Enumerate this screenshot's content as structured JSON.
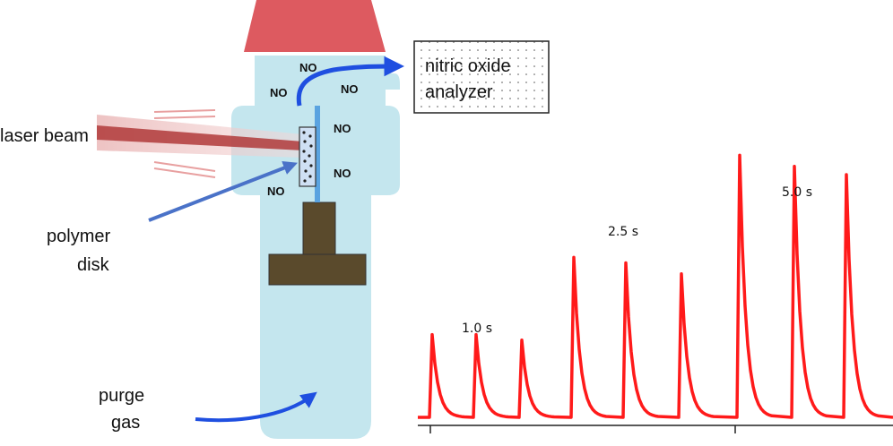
{
  "labels": {
    "analyzer_line1": "nitric oxide",
    "analyzer_line2": "analyzer",
    "laser": "laser beam",
    "polymer_line1": "polymer",
    "polymer_line2": "disk",
    "purge_line1": "purge",
    "purge_line2": "gas"
  },
  "no_label": "NO",
  "no_positions_count": 6,
  "colors": {
    "chamber": "#c4e6ee",
    "cap": "#dd5a60",
    "stand": "#5a4a2c",
    "flow_arrow": "#1f4fe0",
    "pointer_arrow": "#4a72c8",
    "laser": "#b03a3a",
    "trace": "#ff1a1a"
  },
  "chart_data": {
    "type": "line",
    "title": "",
    "xlabel": "",
    "ylabel": "",
    "series": [
      {
        "name": "",
        "pulse_groups": [
          {
            "label": "1.0 s",
            "peaks": [
              0.3,
              0.3,
              0.28
            ]
          },
          {
            "label": "2.5 s",
            "peaks": [
              0.58,
              0.56,
              0.52
            ]
          },
          {
            "label": "5.0 s",
            "peaks": [
              0.95,
              0.91,
              0.88
            ]
          }
        ]
      }
    ],
    "baseline": 0.0,
    "ylim": [
      0,
      1
    ]
  }
}
